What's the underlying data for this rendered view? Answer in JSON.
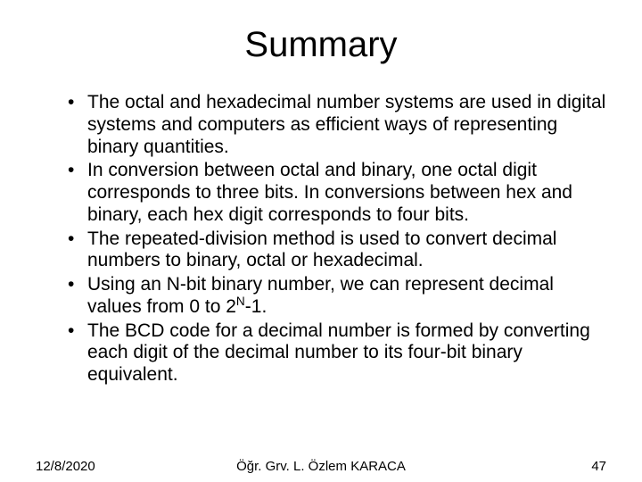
{
  "title": "Summary",
  "bullets": [
    "The octal and hexadecimal number systems are used in digital systems and computers as efficient ways of representing binary quantities.",
    "In conversion between octal and binary, one octal digit corresponds to three bits. In conversions between hex and binary, each hex digit corresponds to four bits.",
    "The repeated-division method is used to convert decimal numbers to binary, octal or hexadecimal.",
    "Using an N-bit binary number, we can represent decimal values from 0 to 2",
    "The BCD code for a decimal number is formed by converting each digit of the decimal number to its four-bit binary equivalent."
  ],
  "bullet4_sup": "N",
  "bullet4_tail": "-1.",
  "footer": {
    "date": "12/8/2020",
    "author": "Öğr. Grv. L. Özlem KARACA",
    "page": "47"
  },
  "colors": {
    "bg": "#ffffff",
    "text": "#000000"
  },
  "fonts": {
    "title_size": 40,
    "body_size": 21,
    "footer_size": 15
  }
}
